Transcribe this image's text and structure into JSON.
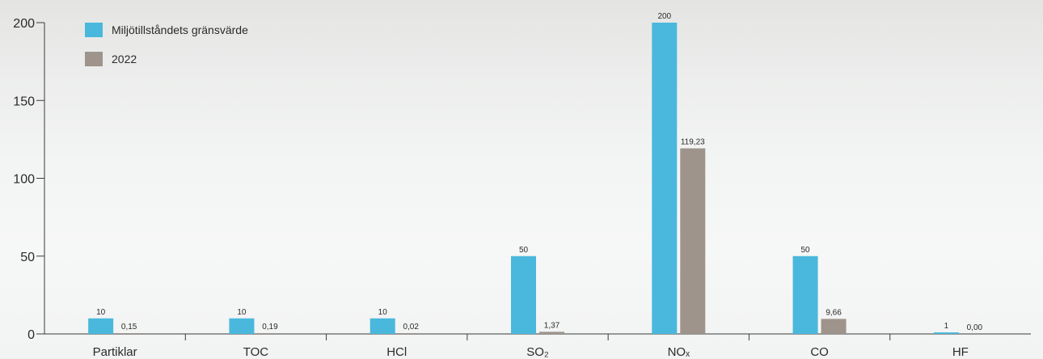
{
  "chart_data": {
    "type": "bar",
    "title": "",
    "xlabel": "",
    "ylabel": "",
    "ylim": [
      0,
      200
    ],
    "yticks": [
      0,
      50,
      100,
      150,
      200
    ],
    "categories": [
      "Partiklar",
      "TOC",
      "HCl",
      "SO₂",
      "NOₓ",
      "CO",
      "HF"
    ],
    "series": [
      {
        "name": "Miljötillståndets gränsvärde",
        "color": "#4ab8dc",
        "values": [
          10,
          10,
          10,
          50,
          200,
          50,
          1
        ],
        "labels": [
          "10",
          "10",
          "10",
          "50",
          "200",
          "50",
          "1"
        ]
      },
      {
        "name": "2022",
        "color": "#9e948c",
        "values": [
          0.15,
          0.19,
          0.02,
          1.37,
          119.23,
          9.66,
          0.0
        ],
        "labels": [
          "0,15",
          "0,19",
          "0,02",
          "1,37",
          "119,23",
          "9,66",
          "0,00"
        ]
      }
    ],
    "legend_position": "top-left",
    "grid": false
  }
}
